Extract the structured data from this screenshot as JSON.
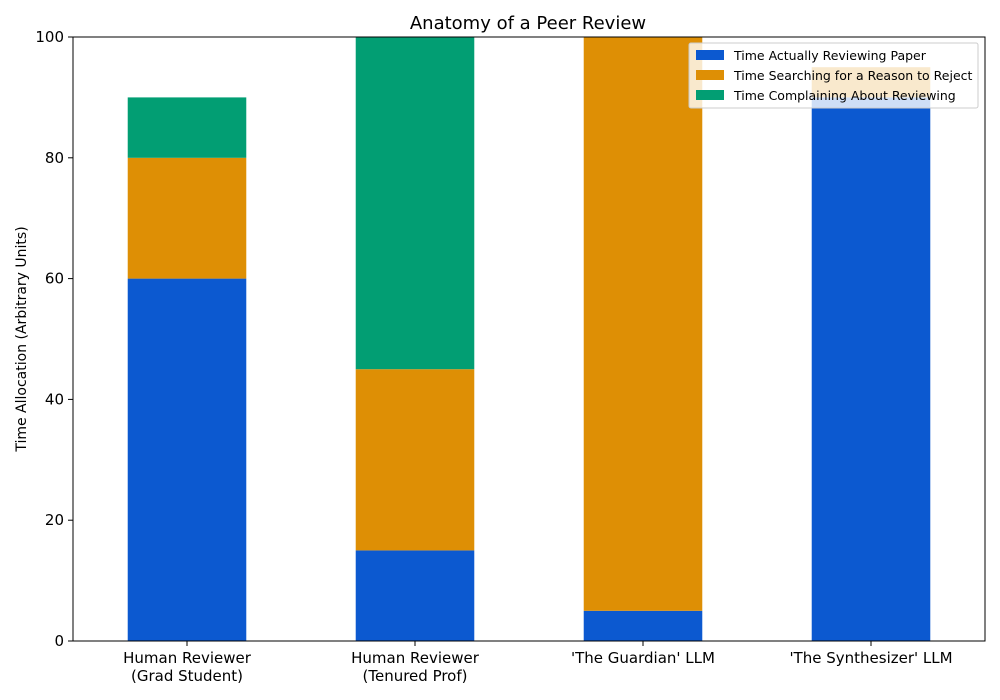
{
  "chart_data": {
    "type": "bar",
    "stacked": true,
    "title": "Anatomy of a Peer Review",
    "xlabel": "",
    "ylabel": "Time Allocation (Arbitrary Units)",
    "ylim": [
      0,
      100
    ],
    "yticks": [
      0,
      20,
      40,
      60,
      80,
      100
    ],
    "categories": [
      [
        "Human Reviewer",
        "(Grad Student)"
      ],
      [
        "Human Reviewer",
        "(Tenured Prof)"
      ],
      [
        "'The Guardian' LLM"
      ],
      [
        "'The Synthesizer' LLM"
      ]
    ],
    "series": [
      {
        "name": "Time Actually Reviewing Paper",
        "color": "#0c59d0",
        "values": [
          60,
          15,
          5,
          90
        ]
      },
      {
        "name": "Time Searching for a Reason to Reject",
        "color": "#de8f05",
        "values": [
          20,
          30,
          95,
          5
        ]
      },
      {
        "name": "Time Complaining About Reviewing",
        "color": "#029e73",
        "values": [
          10,
          55,
          0,
          0
        ]
      }
    ],
    "legend_position": "top-right",
    "grid": false
  }
}
